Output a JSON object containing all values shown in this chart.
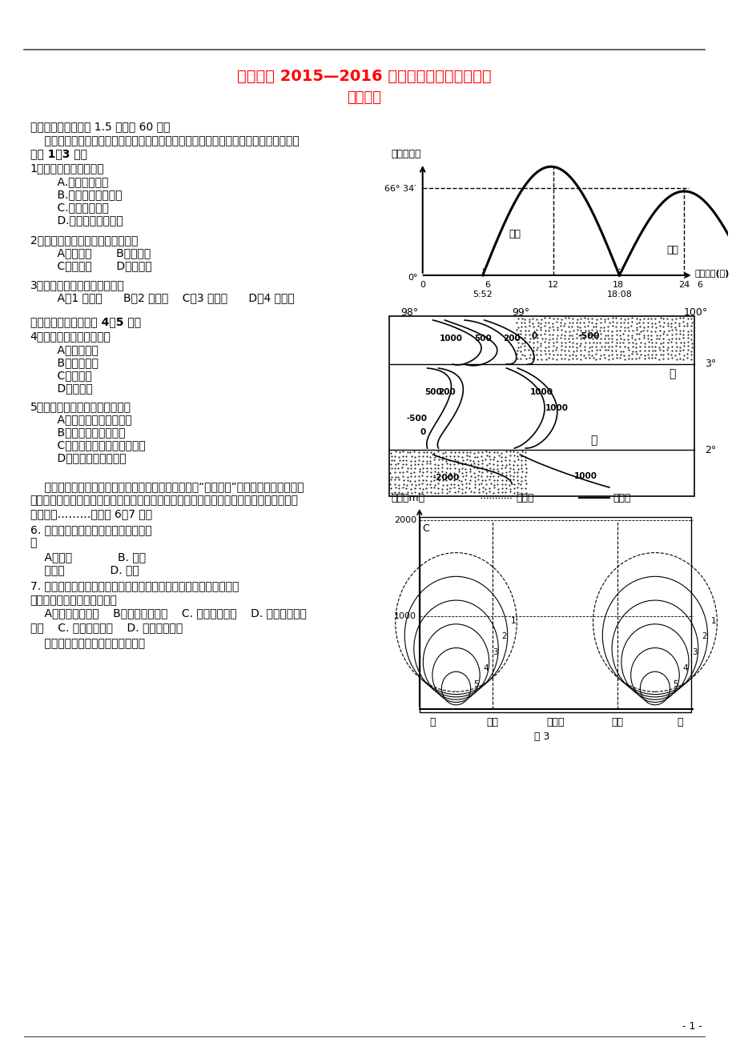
{
  "title1": "扶沟高中 2015—2016 学年度上期高三开学考试",
  "title2": "地理试题",
  "bg_color": "#ffffff",
  "title_color": "#ff0000",
  "page_number": "- 1 -",
  "sec1": "一、选择题（每小题 1.5 分，共 60 分）",
  "intro1": "    下图为甲、乙两地某日从日出到日落太阳高度角日变化示意图，其中甲地位于北半球。",
  "intro1b": "回答 1～3 题。",
  "q1": "1．据图推测，乙地位于",
  "q1a": "    A.东半球赤道上",
  "q1b": "    B.东半球北回归线上",
  "q1c": "    C.西半球赤道上",
  "q1d": "    D.西半球北回归线上",
  "q2": "2．据图推测，该日应该是北半球的",
  "q2ab": "    A．春分日       B．夏至日",
  "q2cd": "    C．秋分日       D．塘至日",
  "q3": "3．甲、乙两地实际距离大约是",
  "q3abcd": "    A．1 万千米      B．2 万千米    C．3 万千米      D．4 万千米",
  "sec2": "读某地区地形图，回答 4～5 题。",
  "q4": "4．甲河河源的补给主要是",
  "q4a": "    A．大气降水",
  "q4b": "    B．冰雪融水",
  "q4c": "    C．湖泊水",
  "q4d": "    D．地下水",
  "q5": "5．当乙地与北京同时日出时，则",
  "q5a": "    A．乙地与北京同时日落",
  "q5b": "    B．北京日出越来越早",
  "q5c": "    C．太阳直射点一定在北半球",
  "q5d": "    D．北京日出东南方向",
  "sec3_1": "    上海某商厦屋顶上铺满了一个个种植筱，这里被称为“屋顶农庄”。商家专门从长白山运",
  "sec3_2": "来优质土壤，吸引附近居民租借种植筱种植蔬果。屋顶农庄运作以来，整栖商厦夏季空调用",
  "sec3_3": "电量下降………，回答 6～7 题。",
  "q6": "6. 商家在经营屋顶农庄时，重点关注的",
  "q6_suf": "是",
  "q6a": "    A．土壤             B. 地形",
  "q6b": "    劳动力             D. 市场",
  "q7": "7. 除了经济效益外，开设屋顶农庄还可获得环境效益。因为它有助于",
  "q7a": "    A．减少灰霖污染    B．缓和热岛效应    C. 削弱紫外辐射    D. 增强雨岛效应",
  "sec4": "    湖泊与湖岸之间存在着局部环流，",
  "fig1_ylabel": "太阳高度角",
  "fig1_xlabel": "北京时间(时)",
  "fig3_title": "图 3"
}
